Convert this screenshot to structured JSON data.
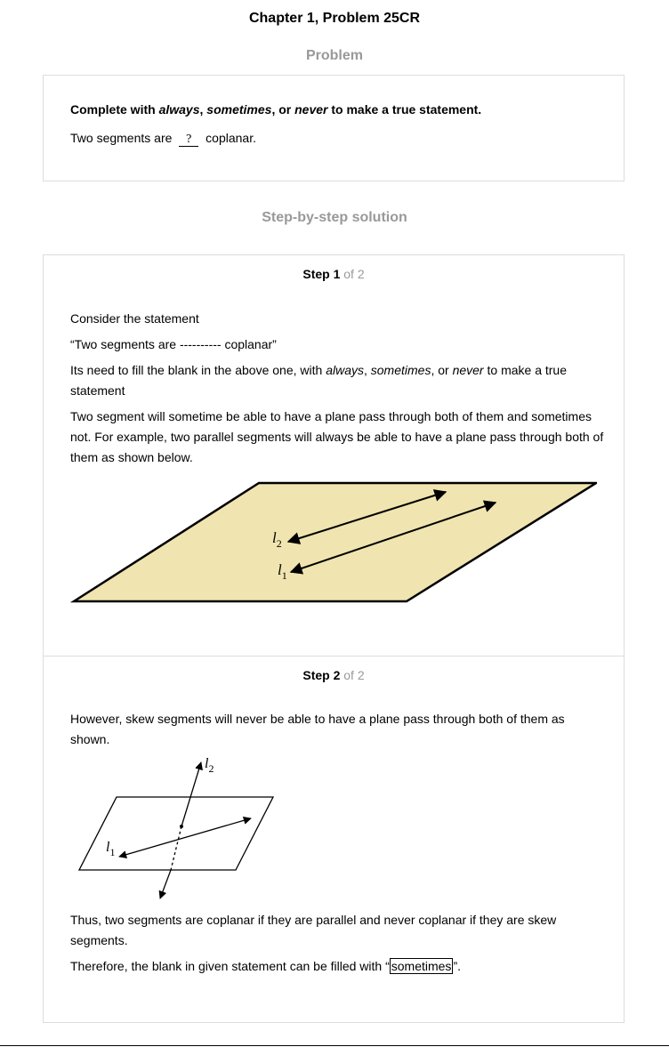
{
  "title": "Chapter 1, Problem 25CR",
  "problem": {
    "heading": "Problem",
    "instruction_prefix": "Complete with ",
    "opt_always": "always",
    "sep1": ", ",
    "opt_sometimes": "sometimes",
    "sep2": ", or ",
    "opt_never": "never",
    "instruction_suffix": " to make a true statement.",
    "statement_prefix": "Two segments are ",
    "blank": "?",
    "statement_suffix": " coplanar."
  },
  "solution": {
    "heading": "Step-by-step solution",
    "step1": {
      "label": "Step 1",
      "of": " of 2",
      "p1": "Consider the statement",
      "p2": "“Two segments are ---------- coplanar”",
      "p3_prefix": "Its need to fill the blank in the above one, with ",
      "p3_always": "always",
      "p3_sep1": ", ",
      "p3_sometimes": "sometimes",
      "p3_sep2": ", or ",
      "p3_never": "never",
      "p3_suffix": " to make a true statement",
      "p4": "Two segment will sometime be able to have a plane pass through both of them and sometimes not. For example, two parallel segments will always be able to have a plane pass through both of them as shown below.",
      "figure": {
        "label_l2": "l",
        "sub_2": "2",
        "label_l1": "l",
        "sub_1": "1",
        "plane_color": "#f0e4b0"
      }
    },
    "step2": {
      "label": "Step 2",
      "of": " of 2",
      "p1": "However, skew segments will never be able to have a plane pass through both of them as shown.",
      "figure": {
        "label_l2": "l",
        "sub_2": "2",
        "label_l1": "l",
        "sub_1": "1"
      },
      "p2": "Thus, two segments are coplanar if they are parallel and never coplanar if they are skew segments.",
      "p3_prefix": "Therefore, the blank in given statement can be filled with “",
      "p3_answer": "sometimes",
      "p3_suffix": "”."
    }
  }
}
